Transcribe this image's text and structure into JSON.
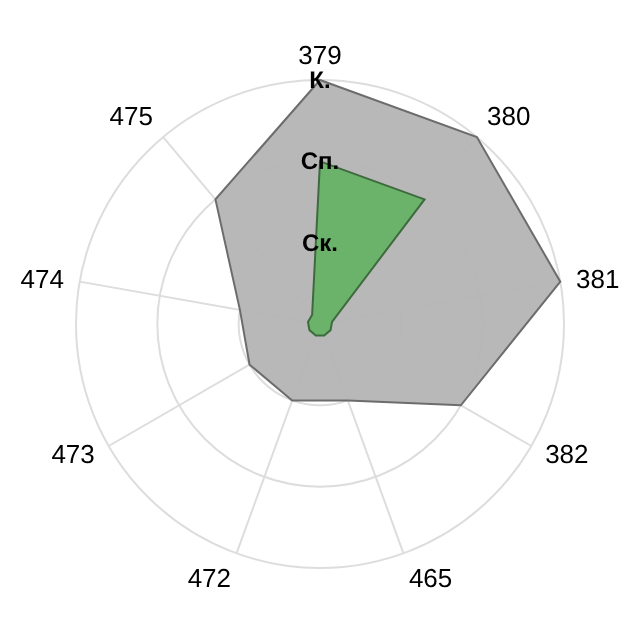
{
  "chart_data": {
    "type": "radar",
    "categories": [
      "379",
      "380",
      "381",
      "382",
      "465",
      "472",
      "473",
      "474",
      "475"
    ],
    "series": [
      {
        "color": "#b4b4b4",
        "values": [
          3,
          3,
          3,
          2,
          1,
          1,
          1,
          1,
          2
        ]
      },
      {
        "color": "#66b266",
        "values": [
          2,
          2,
          0.15,
          0.15,
          0.15,
          0.15,
          0.15,
          0.15,
          0.15
        ]
      }
    ],
    "ylim": [
      0,
      3
    ],
    "yticks": [
      {
        "value": 1,
        "label": "Ск."
      },
      {
        "value": 2,
        "label": "Сп."
      },
      {
        "value": 3,
        "label": "К."
      }
    ],
    "grid": true,
    "legend": false
  }
}
